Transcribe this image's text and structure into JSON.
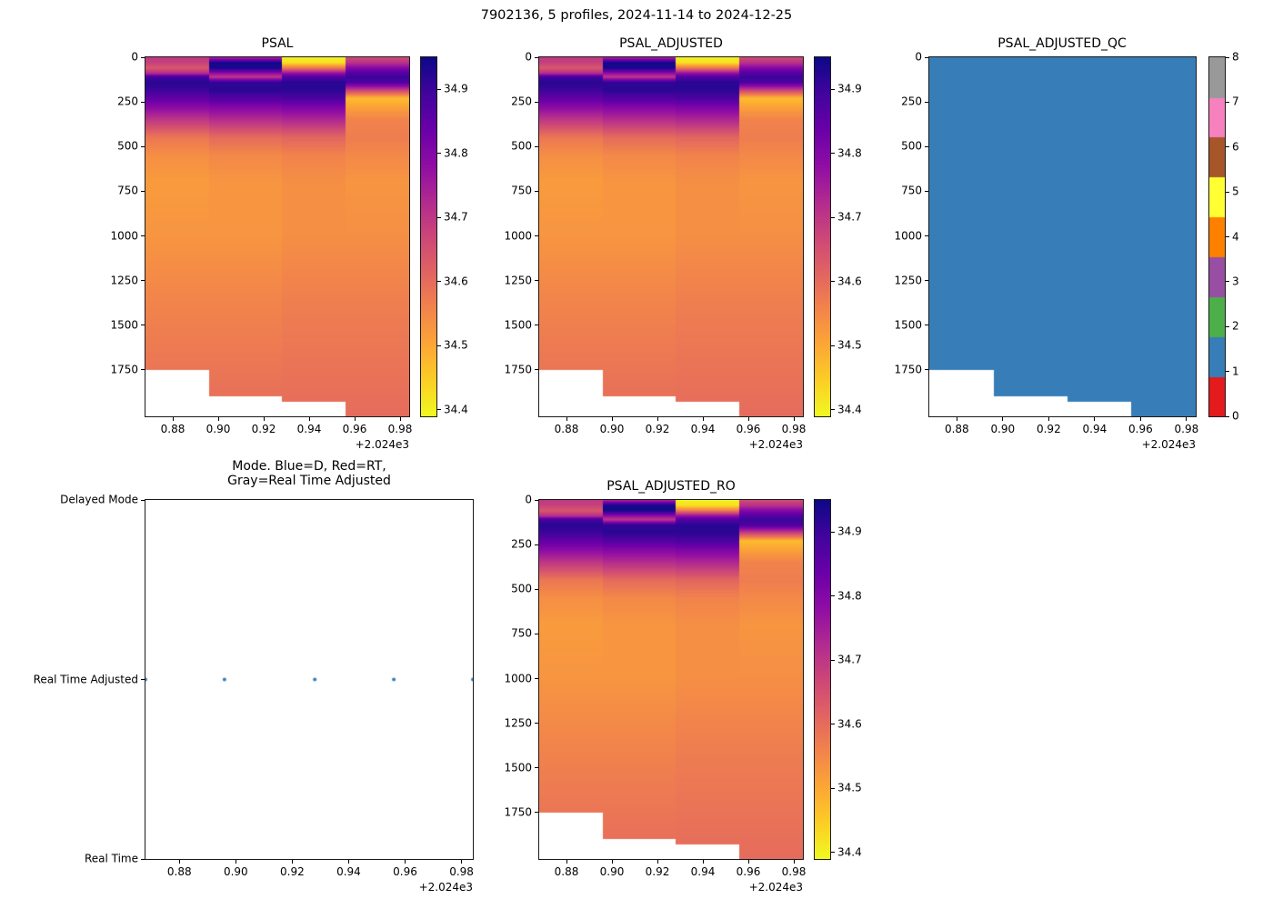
{
  "title": "7902136, 5 profiles, 2024-11-14 to 2024-12-25",
  "chart_data": [
    {
      "type": "heatmap",
      "title": "PSAL",
      "x_range": [
        2024.868,
        2024.984
      ],
      "x_ticks": {
        "values": [
          2024.88,
          2024.9,
          2024.92,
          2024.94,
          2024.96,
          2024.98
        ],
        "labels": [
          "0.88",
          "0.90",
          "0.92",
          "0.94",
          "0.96",
          "0.98"
        ]
      },
      "x_offset_label": "+2.024e3",
      "depth_range": [
        0,
        2010
      ],
      "y_ticks": {
        "values": [
          0,
          250,
          500,
          750,
          1000,
          1250,
          1500,
          1750
        ],
        "labels": [
          "0",
          "250",
          "500",
          "750",
          "1000",
          "1250",
          "1500",
          "1750"
        ]
      },
      "colormap": "plasma_r",
      "vmin": 34.39,
      "vmax": 34.95,
      "colorbar_ticks": {
        "values": [
          34.4,
          34.5,
          34.6,
          34.7,
          34.8,
          34.9
        ],
        "labels": [
          "34.4",
          "34.5",
          "34.6",
          "34.7",
          "34.8",
          "34.9"
        ]
      },
      "column_edges": [
        2024.868,
        2024.896,
        2024.928,
        2024.956,
        2024.984
      ],
      "max_depths": [
        1750,
        1900,
        1930,
        2010
      ],
      "depth_nodes": [
        0,
        30,
        60,
        90,
        110,
        140,
        180,
        230,
        280,
        350,
        450,
        550,
        700,
        1000,
        1400,
        2010
      ],
      "columns": [
        [
          34.7,
          34.68,
          34.64,
          34.72,
          34.89,
          34.92,
          34.9,
          34.85,
          34.79,
          34.7,
          34.58,
          34.54,
          34.52,
          34.53,
          34.56,
          34.6
        ],
        [
          34.73,
          34.94,
          34.94,
          34.78,
          34.7,
          34.91,
          34.92,
          34.87,
          34.8,
          34.72,
          34.6,
          34.55,
          34.53,
          34.53,
          34.56,
          34.6
        ],
        [
          34.4,
          34.42,
          34.58,
          34.78,
          34.87,
          34.92,
          34.92,
          34.88,
          34.81,
          34.73,
          34.61,
          34.56,
          34.54,
          34.54,
          34.57,
          34.6
        ],
        [
          34.66,
          34.71,
          34.8,
          34.87,
          34.9,
          34.88,
          34.7,
          34.47,
          34.51,
          34.56,
          34.57,
          34.55,
          34.53,
          34.54,
          34.57,
          34.6
        ]
      ]
    },
    {
      "type": "heatmap",
      "title": "PSAL_ADJUSTED",
      "x_range": [
        2024.868,
        2024.984
      ],
      "x_ticks": {
        "values": [
          2024.88,
          2024.9,
          2024.92,
          2024.94,
          2024.96,
          2024.98
        ],
        "labels": [
          "0.88",
          "0.90",
          "0.92",
          "0.94",
          "0.96",
          "0.98"
        ]
      },
      "x_offset_label": "+2.024e3",
      "depth_range": [
        0,
        2010
      ],
      "y_ticks": {
        "values": [
          0,
          250,
          500,
          750,
          1000,
          1250,
          1500,
          1750
        ],
        "labels": [
          "0",
          "250",
          "500",
          "750",
          "1000",
          "1250",
          "1500",
          "1750"
        ]
      },
      "colormap": "plasma_r",
      "vmin": 34.39,
      "vmax": 34.95,
      "colorbar_ticks": {
        "values": [
          34.4,
          34.5,
          34.6,
          34.7,
          34.8,
          34.9
        ],
        "labels": [
          "34.4",
          "34.5",
          "34.6",
          "34.7",
          "34.8",
          "34.9"
        ]
      },
      "column_edges": [
        2024.868,
        2024.896,
        2024.928,
        2024.956,
        2024.984
      ],
      "max_depths": [
        1750,
        1900,
        1930,
        2010
      ],
      "depth_nodes": [
        0,
        30,
        60,
        90,
        110,
        140,
        180,
        230,
        280,
        350,
        450,
        550,
        700,
        1000,
        1400,
        2010
      ],
      "columns": [
        [
          34.7,
          34.68,
          34.64,
          34.72,
          34.89,
          34.92,
          34.9,
          34.85,
          34.79,
          34.7,
          34.58,
          34.54,
          34.52,
          34.53,
          34.56,
          34.6
        ],
        [
          34.73,
          34.94,
          34.94,
          34.78,
          34.7,
          34.91,
          34.92,
          34.87,
          34.8,
          34.72,
          34.6,
          34.55,
          34.53,
          34.53,
          34.56,
          34.6
        ],
        [
          34.4,
          34.42,
          34.58,
          34.78,
          34.87,
          34.92,
          34.92,
          34.88,
          34.81,
          34.73,
          34.61,
          34.56,
          34.54,
          34.54,
          34.57,
          34.6
        ],
        [
          34.66,
          34.71,
          34.8,
          34.87,
          34.9,
          34.88,
          34.7,
          34.47,
          34.51,
          34.56,
          34.57,
          34.55,
          34.53,
          34.54,
          34.57,
          34.6
        ]
      ]
    },
    {
      "type": "qc_heatmap",
      "title": "PSAL_ADJUSTED_QC",
      "x_range": [
        2024.868,
        2024.984
      ],
      "x_ticks": {
        "values": [
          2024.88,
          2024.9,
          2024.92,
          2024.94,
          2024.96,
          2024.98
        ],
        "labels": [
          "0.88",
          "0.90",
          "0.92",
          "0.94",
          "0.96",
          "0.98"
        ]
      },
      "x_offset_label": "+2.024e3",
      "depth_range": [
        0,
        2010
      ],
      "y_ticks": {
        "values": [
          0,
          250,
          500,
          750,
          1000,
          1250,
          1500,
          1750
        ],
        "labels": [
          "0",
          "250",
          "500",
          "750",
          "1000",
          "1250",
          "1500",
          "1750"
        ]
      },
      "flag_colors": [
        "#e41a1c",
        "#377eb8",
        "#4daf4a",
        "#984ea3",
        "#ff7f00",
        "#ffff33",
        "#a65628",
        "#f781bf",
        "#999999"
      ],
      "colorbar_ticks": {
        "values": [
          0,
          1,
          2,
          3,
          4,
          5,
          6,
          7,
          8
        ],
        "labels": [
          "0",
          "1",
          "2",
          "3",
          "4",
          "5",
          "6",
          "7",
          "8"
        ]
      },
      "column_edges": [
        2024.868,
        2024.896,
        2024.928,
        2024.956,
        2024.984
      ],
      "max_depths": [
        1750,
        1900,
        1930,
        2010
      ],
      "qc_values": [
        1,
        1,
        1,
        1
      ]
    },
    {
      "type": "scatter",
      "title_lines": [
        "Mode. Blue=D, Red=RT,",
        "Gray=Real Time Adjusted"
      ],
      "x_range": [
        2024.868,
        2024.984
      ],
      "x_ticks": {
        "values": [
          2024.88,
          2024.9,
          2024.92,
          2024.94,
          2024.96,
          2024.98
        ],
        "labels": [
          "0.88",
          "0.90",
          "0.92",
          "0.94",
          "0.96",
          "0.98"
        ]
      },
      "x_offset_label": "+2.024e3",
      "y_categories": [
        "Real Time",
        "Real Time Adjusted",
        "Delayed Mode"
      ],
      "point_color": "#377eb8",
      "points": [
        {
          "x": 2024.868,
          "mode": "Real Time Adjusted"
        },
        {
          "x": 2024.896,
          "mode": "Real Time Adjusted"
        },
        {
          "x": 2024.928,
          "mode": "Real Time Adjusted"
        },
        {
          "x": 2024.956,
          "mode": "Real Time Adjusted"
        },
        {
          "x": 2024.984,
          "mode": "Real Time Adjusted"
        }
      ]
    },
    {
      "type": "heatmap",
      "title": "PSAL_ADJUSTED_RO",
      "x_range": [
        2024.868,
        2024.984
      ],
      "x_ticks": {
        "values": [
          2024.88,
          2024.9,
          2024.92,
          2024.94,
          2024.96,
          2024.98
        ],
        "labels": [
          "0.88",
          "0.90",
          "0.92",
          "0.94",
          "0.96",
          "0.98"
        ]
      },
      "x_offset_label": "+2.024e3",
      "depth_range": [
        0,
        2010
      ],
      "y_ticks": {
        "values": [
          0,
          250,
          500,
          750,
          1000,
          1250,
          1500,
          1750
        ],
        "labels": [
          "0",
          "250",
          "500",
          "750",
          "1000",
          "1250",
          "1500",
          "1750"
        ]
      },
      "colormap": "plasma_r",
      "vmin": 34.39,
      "vmax": 34.95,
      "colorbar_ticks": {
        "values": [
          34.4,
          34.5,
          34.6,
          34.7,
          34.8,
          34.9
        ],
        "labels": [
          "34.4",
          "34.5",
          "34.6",
          "34.7",
          "34.8",
          "34.9"
        ]
      },
      "column_edges": [
        2024.868,
        2024.896,
        2024.928,
        2024.956,
        2024.984
      ],
      "max_depths": [
        1750,
        1900,
        1930,
        2010
      ],
      "depth_nodes": [
        0,
        30,
        60,
        90,
        110,
        140,
        180,
        230,
        280,
        350,
        450,
        550,
        700,
        1000,
        1400,
        2010
      ],
      "columns": [
        [
          34.7,
          34.68,
          34.64,
          34.72,
          34.89,
          34.92,
          34.9,
          34.85,
          34.79,
          34.7,
          34.58,
          34.54,
          34.52,
          34.53,
          34.56,
          34.6
        ],
        [
          34.73,
          34.94,
          34.94,
          34.78,
          34.7,
          34.91,
          34.92,
          34.87,
          34.8,
          34.72,
          34.6,
          34.55,
          34.53,
          34.53,
          34.56,
          34.6
        ],
        [
          34.4,
          34.42,
          34.58,
          34.78,
          34.87,
          34.92,
          34.92,
          34.88,
          34.81,
          34.73,
          34.61,
          34.56,
          34.54,
          34.54,
          34.57,
          34.6
        ],
        [
          34.66,
          34.71,
          34.8,
          34.87,
          34.9,
          34.88,
          34.7,
          34.47,
          34.51,
          34.56,
          34.57,
          34.55,
          34.53,
          34.54,
          34.57,
          34.6
        ]
      ]
    }
  ]
}
